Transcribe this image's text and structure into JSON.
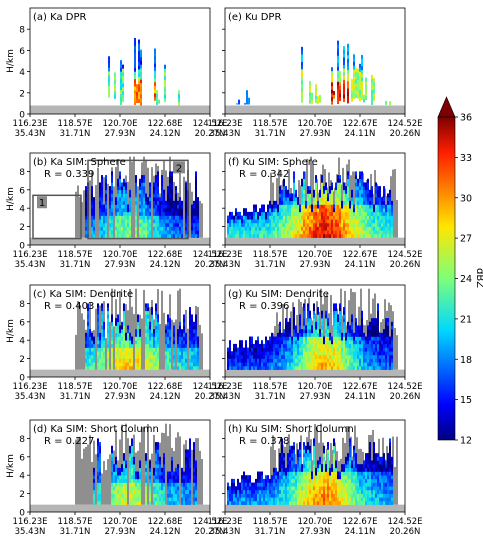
{
  "chart_data": {
    "type": "heatmap",
    "colorbar": {
      "label": "dBZ",
      "ticks": [
        12,
        15,
        18,
        21,
        24,
        27,
        30,
        33,
        36
      ],
      "range": [
        12,
        36
      ],
      "extend": "max"
    },
    "ylabel": "H/km",
    "yticks": [
      0,
      2,
      4,
      6,
      8
    ],
    "ylim": [
      0,
      10
    ],
    "panels": [
      {
        "id": "a",
        "title": "(a) Ka DPR",
        "r_label": "",
        "xticks": [
          [
            "116.23E",
            "35.43N"
          ],
          [
            "118.57E",
            "31.71N"
          ],
          [
            "120.70E",
            "27.93N"
          ],
          [
            "122.68E",
            "24.12N"
          ],
          [
            "124.52E",
            "20.27N"
          ]
        ]
      },
      {
        "id": "e",
        "title": "(e) Ku DPR",
        "r_label": "",
        "xticks": [
          [
            "116.23E",
            "35.43N"
          ],
          [
            "118.57E",
            "31.71N"
          ],
          [
            "120.70E",
            "27.93N"
          ],
          [
            "122.67E",
            "24.11N"
          ],
          [
            "124.52E",
            "20.26N"
          ]
        ]
      },
      {
        "id": "b",
        "title": "(b) Ka SIM: Sphere",
        "r_label": "R = 0.339",
        "boxes": [
          "1",
          "2"
        ],
        "xticks": [
          [
            "116.23E",
            "35.43N"
          ],
          [
            "118.57E",
            "31.71N"
          ],
          [
            "120.70E",
            "27.93N"
          ],
          [
            "122.68E",
            "24.12N"
          ],
          [
            "124.52E",
            "20.27N"
          ]
        ]
      },
      {
        "id": "f",
        "title": "(f) Ku SIM: Sphere",
        "r_label": "R = 0.342",
        "xticks": [
          [
            "116.23E",
            "35.43N"
          ],
          [
            "118.57E",
            "31.71N"
          ],
          [
            "120.70E",
            "27.93N"
          ],
          [
            "122.67E",
            "24.11N"
          ],
          [
            "124.52E",
            "20.26N"
          ]
        ]
      },
      {
        "id": "c",
        "title": "(c) Ka SIM: Dendrite",
        "r_label": "R = 0.403",
        "xticks": [
          [
            "116.23E",
            "35.43N"
          ],
          [
            "118.57E",
            "31.71N"
          ],
          [
            "120.70E",
            "27.93N"
          ],
          [
            "122.68E",
            "24.12N"
          ],
          [
            "124.52E",
            "20.27N"
          ]
        ]
      },
      {
        "id": "g",
        "title": "(g) Ku SIM: Dendrite",
        "r_label": "R = 0.396",
        "xticks": [
          [
            "116.23E",
            "35.43N"
          ],
          [
            "118.57E",
            "31.71N"
          ],
          [
            "120.70E",
            "27.93N"
          ],
          [
            "122.67E",
            "24.11N"
          ],
          [
            "124.52E",
            "20.26N"
          ]
        ]
      },
      {
        "id": "d",
        "title": "(d) Ka SIM: Short Column",
        "r_label": "R = 0.227",
        "xticks": [
          [
            "116.23E",
            "35.43N"
          ],
          [
            "118.57E",
            "31.71N"
          ],
          [
            "120.70E",
            "27.93N"
          ],
          [
            "122.68E",
            "24.12N"
          ],
          [
            "124.52E",
            "20.27N"
          ]
        ]
      },
      {
        "id": "h",
        "title": "(h) Ku SIM: Short Column",
        "r_label": "R = 0.378",
        "xticks": [
          [
            "116.23E",
            "35.43N"
          ],
          [
            "118.57E",
            "31.71N"
          ],
          [
            "120.70E",
            "27.93N"
          ],
          [
            "122.67E",
            "24.11N"
          ],
          [
            "124.52E",
            "20.26N"
          ]
        ]
      }
    ]
  }
}
